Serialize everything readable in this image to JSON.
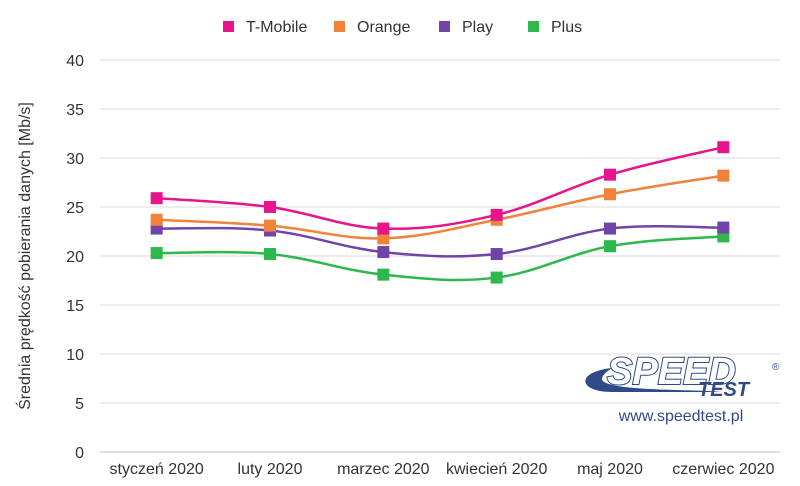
{
  "chart_data": {
    "type": "line",
    "categories": [
      "styczeń 2020",
      "luty 2020",
      "marzec 2020",
      "kwiecień 2020",
      "maj 2020",
      "czerwiec 2020"
    ],
    "series": [
      {
        "name": "T-Mobile",
        "color": "#e6158c",
        "values": [
          25.9,
          25.0,
          22.8,
          24.2,
          28.3,
          31.1
        ]
      },
      {
        "name": "Orange",
        "color": "#f0823a",
        "values": [
          23.7,
          23.1,
          21.8,
          23.7,
          26.3,
          28.2
        ]
      },
      {
        "name": "Play",
        "color": "#7044a8",
        "values": [
          22.8,
          22.6,
          20.4,
          20.2,
          22.8,
          22.9
        ]
      },
      {
        "name": "Plus",
        "color": "#2db84d",
        "values": [
          20.3,
          20.2,
          18.1,
          17.8,
          21.0,
          22.0
        ]
      }
    ],
    "yticks": [
      0,
      5,
      10,
      15,
      20,
      25,
      30,
      35,
      40
    ],
    "ylim": [
      0,
      40
    ],
    "ylabel": "Średnia prędkość pobierania danych [Mb/s]",
    "xlabel": "",
    "grid": true,
    "legend_position": "top"
  },
  "watermark": {
    "logo_main": "SPEED",
    "logo_sub": "TEST",
    "logo_registered": "®",
    "url": "www.speedtest.pl"
  }
}
